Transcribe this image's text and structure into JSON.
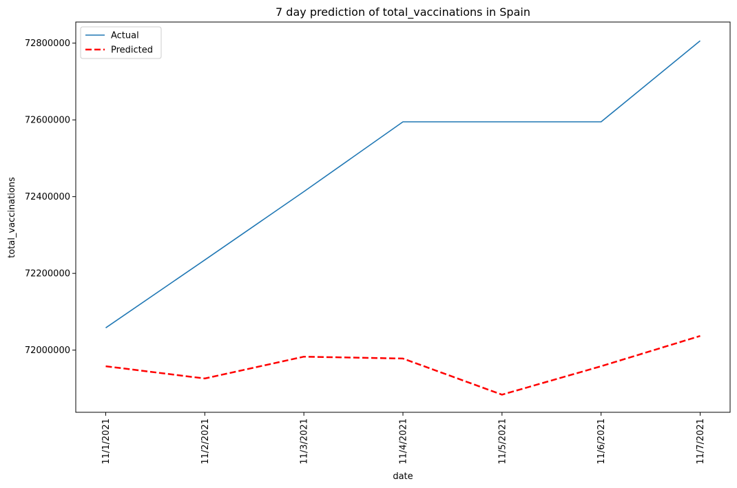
{
  "chart_data": {
    "type": "line",
    "title": "7 day prediction of total_vaccinations in Spain",
    "xlabel": "date",
    "ylabel": "total_vaccinations",
    "categories": [
      "11/1/2021",
      "11/2/2021",
      "11/3/2021",
      "11/4/2021",
      "11/5/2021",
      "11/6/2021",
      "11/7/2021"
    ],
    "yticks": [
      "72000000",
      "72200000",
      "72400000",
      "72600000",
      "72800000"
    ],
    "ylim": [
      71838000,
      72855000
    ],
    "grid": false,
    "legend_position": "top-left",
    "series": [
      {
        "name": "Actual",
        "color": "#1f77b4",
        "style": "solid",
        "values": [
          72058000,
          72235000,
          72413000,
          72595000,
          72595000,
          72595000,
          72806000
        ]
      },
      {
        "name": "Predicted",
        "color": "#ff0000",
        "style": "dashed",
        "values": [
          71958000,
          71926000,
          71983000,
          71978000,
          71884000,
          71958000,
          72037000
        ]
      }
    ]
  }
}
